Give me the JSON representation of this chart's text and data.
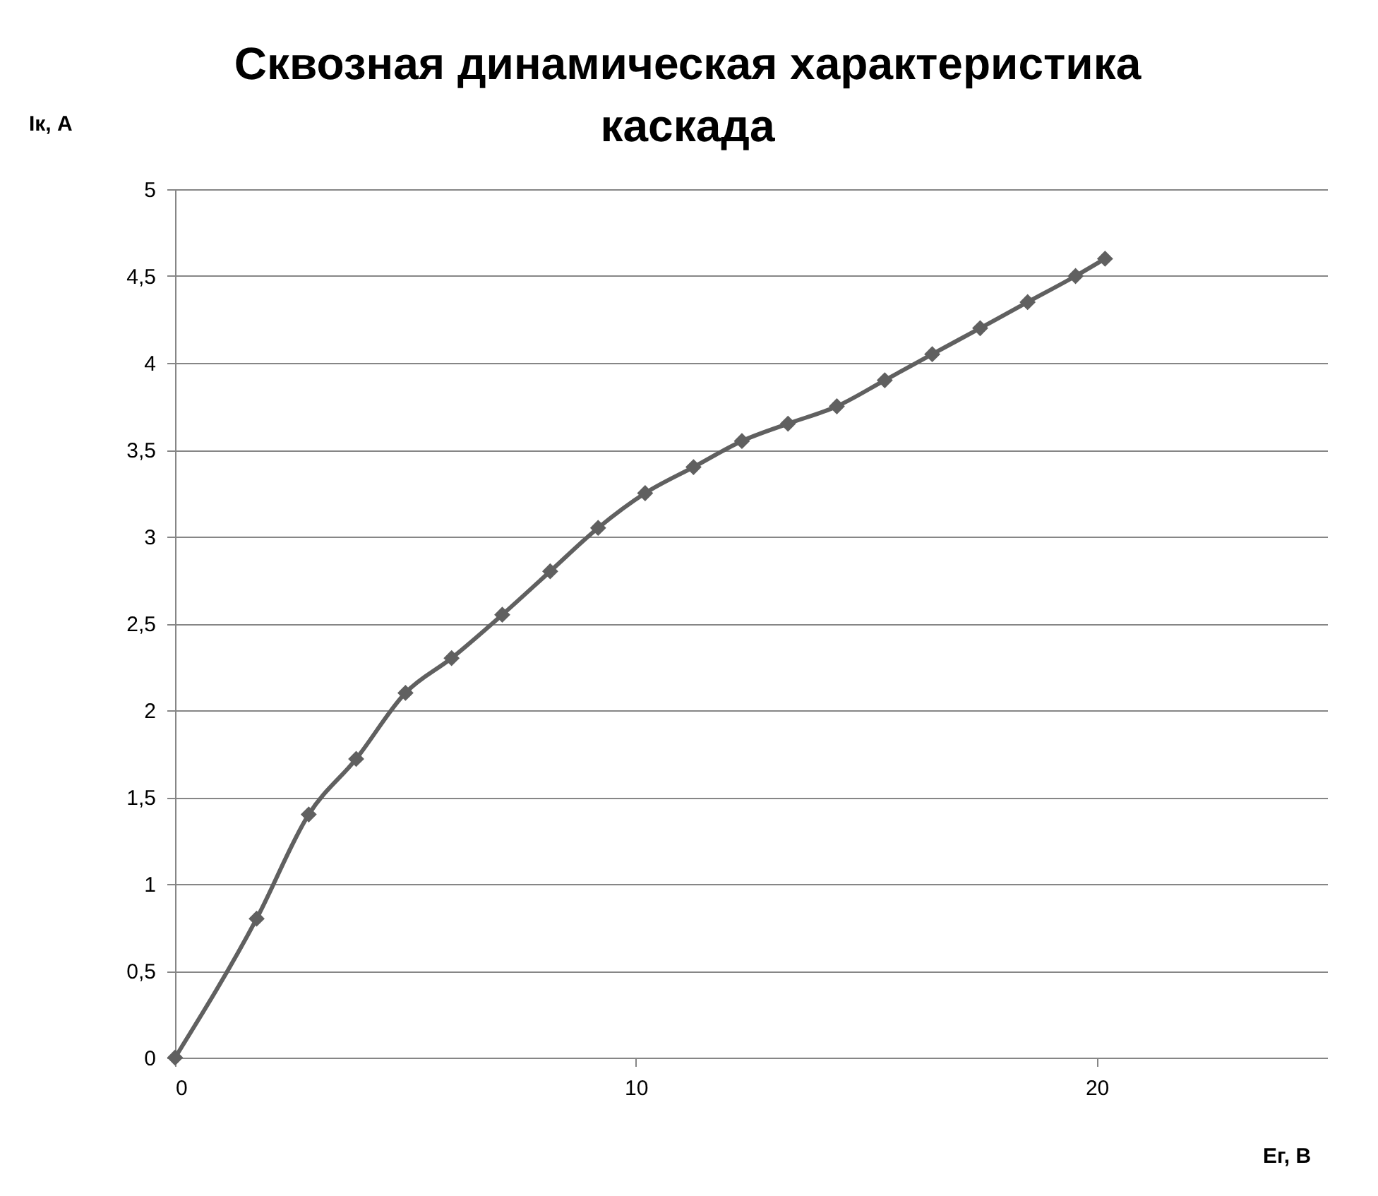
{
  "chart_data": {
    "type": "line",
    "title": "Сквозная динамическая характеристика каскада",
    "xlabel": "Eг, В",
    "ylabel": "Iк, А",
    "x": [
      0,
      1.77,
      2.9,
      3.93,
      5.0,
      6.0,
      7.1,
      8.14,
      9.18,
      10.2,
      11.25,
      12.3,
      13.3,
      14.36,
      15.4,
      16.43,
      17.47,
      18.5,
      19.54,
      20.18
    ],
    "series": [
      {
        "color": "#606060",
        "values": [
          0,
          0.8,
          1.4,
          1.72,
          2.1,
          2.3,
          2.55,
          2.8,
          3.05,
          3.25,
          3.4,
          3.55,
          3.65,
          3.75,
          3.9,
          4.05,
          4.2,
          4.35,
          4.5,
          4.6
        ]
      }
    ],
    "xlim": [
      0,
      25
    ],
    "xticks": [
      0,
      10,
      20
    ],
    "ylim": [
      0,
      5
    ],
    "yticks": [
      0,
      {
        "value": 0.5,
        "label": "0,5"
      },
      1,
      {
        "value": 1.5,
        "label": "1,5"
      },
      2,
      {
        "value": 2.5,
        "label": "2,5"
      },
      3,
      {
        "value": 3.5,
        "label": "3,5"
      },
      4,
      {
        "value": 4.5,
        "label": "4,5"
      },
      5
    ],
    "grid": "y",
    "legend": false,
    "marker": "diamond",
    "line_style": "solid"
  }
}
